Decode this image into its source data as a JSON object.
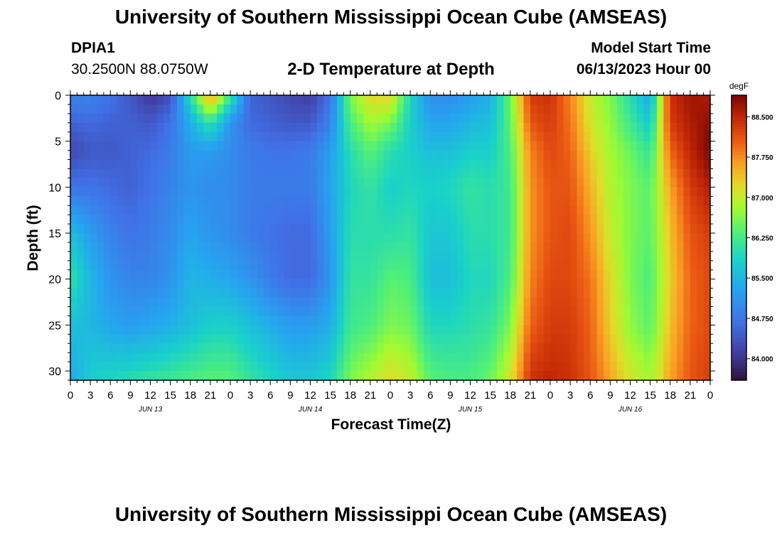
{
  "header": {
    "title": "University of Southern Mississippi Ocean Cube (AMSEAS)",
    "station": "DPIA1",
    "coords": "30.2500N  88.0750W",
    "subtitle": "2-D Temperature at Depth",
    "start_label": "Model Start Time",
    "start_value": "06/13/2023 Hour 00"
  },
  "footer": {
    "title": "University of Southern Mississippi Ocean Cube (AMSEAS)"
  },
  "chart_data": {
    "type": "heatmap",
    "title": "2-D Temperature at Depth",
    "xlabel": "Forecast Time(Z)",
    "ylabel": "Depth (ft)",
    "x_tick_labels": [
      "0",
      "3",
      "6",
      "9",
      "12",
      "15",
      "18",
      "21",
      "0",
      "3",
      "6",
      "9",
      "12",
      "15",
      "18",
      "21",
      "0",
      "3",
      "6",
      "9",
      "12",
      "15",
      "18",
      "21",
      "0",
      "3",
      "6",
      "9",
      "12",
      "15",
      "18",
      "21",
      "0"
    ],
    "day_labels": [
      "JUN 13",
      "JUN 14",
      "JUN 15",
      "JUN 16"
    ],
    "xlim_hours": [
      0,
      96
    ],
    "y_ticks": [
      0,
      5,
      10,
      15,
      20,
      25,
      30
    ],
    "ylim": [
      0,
      31
    ],
    "y_reversed": true,
    "colorbar": {
      "unit": "degF",
      "ticks": [
        84.0,
        84.75,
        85.5,
        86.25,
        87.0,
        87.75,
        88.5
      ],
      "tick_labels": [
        "84.000",
        "84.750",
        "85.500",
        "86.250",
        "87.000",
        "87.750",
        "88.500"
      ],
      "range": [
        83.6,
        88.9
      ]
    },
    "x_hours": [
      0,
      3,
      6,
      9,
      12,
      15,
      18,
      21,
      24,
      27,
      30,
      33,
      36,
      39,
      42,
      45,
      48,
      51,
      54,
      57,
      60,
      63,
      66,
      69,
      72,
      75,
      78,
      81,
      84,
      87,
      90,
      93,
      96
    ],
    "depths_ft": [
      0,
      3,
      6,
      10,
      15,
      20,
      25,
      31
    ],
    "values_degF": [
      [
        84.9,
        84.5,
        84.2,
        84.7,
        85.6,
        86.1,
        85.6,
        85.3
      ],
      [
        84.9,
        84.6,
        84.4,
        84.7,
        85.2,
        85.5,
        85.5,
        85.8
      ],
      [
        84.7,
        84.5,
        84.4,
        84.6,
        84.9,
        85.1,
        85.3,
        85.9
      ],
      [
        84.4,
        84.5,
        84.5,
        84.5,
        84.7,
        84.9,
        85.2,
        86.0
      ],
      [
        84.0,
        84.4,
        84.6,
        84.7,
        84.8,
        84.9,
        85.3,
        86.1
      ],
      [
        84.3,
        84.7,
        84.8,
        84.9,
        85.0,
        85.1,
        85.4,
        86.2
      ],
      [
        86.0,
        85.4,
        85.2,
        85.1,
        85.3,
        85.5,
        85.6,
        86.3
      ],
      [
        87.8,
        86.1,
        85.2,
        85.0,
        85.1,
        85.4,
        85.8,
        86.4
      ],
      [
        86.2,
        85.1,
        85.0,
        85.0,
        85.0,
        85.3,
        85.8,
        86.4
      ],
      [
        84.5,
        84.6,
        84.8,
        84.8,
        84.8,
        85.1,
        85.6,
        86.1
      ],
      [
        84.4,
        84.5,
        84.7,
        84.8,
        84.7,
        84.8,
        85.4,
        85.9
      ],
      [
        84.2,
        84.4,
        84.7,
        84.8,
        84.6,
        84.6,
        85.2,
        85.7
      ],
      [
        84.1,
        84.4,
        84.8,
        84.8,
        84.6,
        84.6,
        85.2,
        85.7
      ],
      [
        84.7,
        84.9,
        85.2,
        85.3,
        85.2,
        85.1,
        85.4,
        85.9
      ],
      [
        86.6,
        86.3,
        86.0,
        85.9,
        86.0,
        86.1,
        86.2,
        86.6
      ],
      [
        87.2,
        86.8,
        86.4,
        86.1,
        86.0,
        86.1,
        86.3,
        86.9
      ],
      [
        87.3,
        86.6,
        86.0,
        85.8,
        86.0,
        86.4,
        86.6,
        87.2
      ],
      [
        85.9,
        85.8,
        85.8,
        85.9,
        86.1,
        86.3,
        86.5,
        87.0
      ],
      [
        85.0,
        85.3,
        85.6,
        85.8,
        85.7,
        85.6,
        85.9,
        86.4
      ],
      [
        85.0,
        85.3,
        85.6,
        85.9,
        85.7,
        85.6,
        85.9,
        86.3
      ],
      [
        85.2,
        85.5,
        85.8,
        86.1,
        86.0,
        85.9,
        86.0,
        86.3
      ],
      [
        85.4,
        85.6,
        85.8,
        86.0,
        86.0,
        85.9,
        86.1,
        86.5
      ],
      [
        86.5,
        86.4,
        86.3,
        86.2,
        86.2,
        86.3,
        86.6,
        87.1
      ],
      [
        88.3,
        88.1,
        87.8,
        87.7,
        87.7,
        87.8,
        88.0,
        88.4
      ],
      [
        88.4,
        88.3,
        88.2,
        88.1,
        88.1,
        88.2,
        88.3,
        88.5
      ],
      [
        87.8,
        87.9,
        88.0,
        88.1,
        88.2,
        88.2,
        88.3,
        88.4
      ],
      [
        87.0,
        87.1,
        87.3,
        87.5,
        87.7,
        87.9,
        88.0,
        88.1
      ],
      [
        86.6,
        86.7,
        86.8,
        86.9,
        87.0,
        87.2,
        87.3,
        87.6
      ],
      [
        86.0,
        86.2,
        86.5,
        86.6,
        86.6,
        86.6,
        86.7,
        87.1
      ],
      [
        85.3,
        85.7,
        86.1,
        86.4,
        86.4,
        86.3,
        86.4,
        86.8
      ],
      [
        88.4,
        88.3,
        88.0,
        87.6,
        87.4,
        87.3,
        87.4,
        87.6
      ],
      [
        88.7,
        88.6,
        88.5,
        88.3,
        88.1,
        88.0,
        88.0,
        88.1
      ],
      [
        88.6,
        88.8,
        88.9,
        88.6,
        88.3,
        88.2,
        88.2,
        88.3
      ]
    ]
  }
}
